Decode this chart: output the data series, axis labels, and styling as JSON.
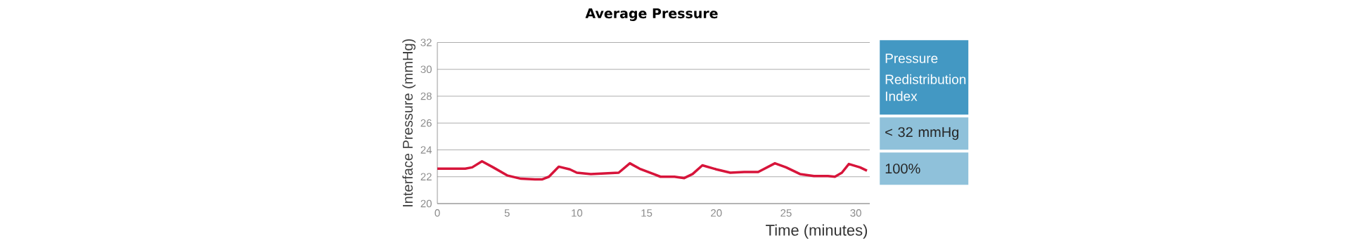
{
  "chart_data": [
    {
      "type": "line",
      "title": "Average Pressure",
      "xlabel": "Time (minutes)",
      "ylabel": "Interface Pressure (mmHg)",
      "x": [
        0,
        1,
        2,
        2.5,
        3.2,
        4,
        5,
        6,
        7,
        7.5,
        8,
        8.7,
        9.5,
        10,
        11,
        12,
        13,
        13.8,
        14.5,
        15.5,
        16,
        17,
        17.7,
        18.3,
        19,
        20,
        21,
        22,
        23,
        24.2,
        25,
        26,
        27,
        28,
        28.5,
        29,
        29.5,
        30.3,
        30.8
      ],
      "series": [
        {
          "color": "#d7143a",
          "values": [
            22.6,
            22.6,
            22.6,
            22.7,
            23.15,
            22.7,
            22.1,
            21.85,
            21.8,
            21.8,
            22.0,
            22.75,
            22.55,
            22.3,
            22.2,
            22.25,
            22.3,
            23.0,
            22.6,
            22.2,
            22.0,
            22.0,
            21.9,
            22.2,
            22.85,
            22.55,
            22.3,
            22.35,
            22.35,
            23.0,
            22.7,
            22.2,
            22.05,
            22.05,
            22.0,
            22.3,
            22.95,
            22.7,
            22.45
          ]
        }
      ],
      "xlim": [
        0,
        31
      ],
      "ylim": [
        20,
        32
      ],
      "xticks": [
        0,
        5,
        10,
        15,
        20,
        25,
        30
      ],
      "yticks": [
        20,
        22,
        24,
        26,
        28,
        30,
        32
      ],
      "grid": "y"
    },
    {
      "type": "other",
      "title": "Pressure Redistribution Index",
      "annotations": [
        "< 32 mmHg",
        "100%"
      ]
    }
  ]
}
